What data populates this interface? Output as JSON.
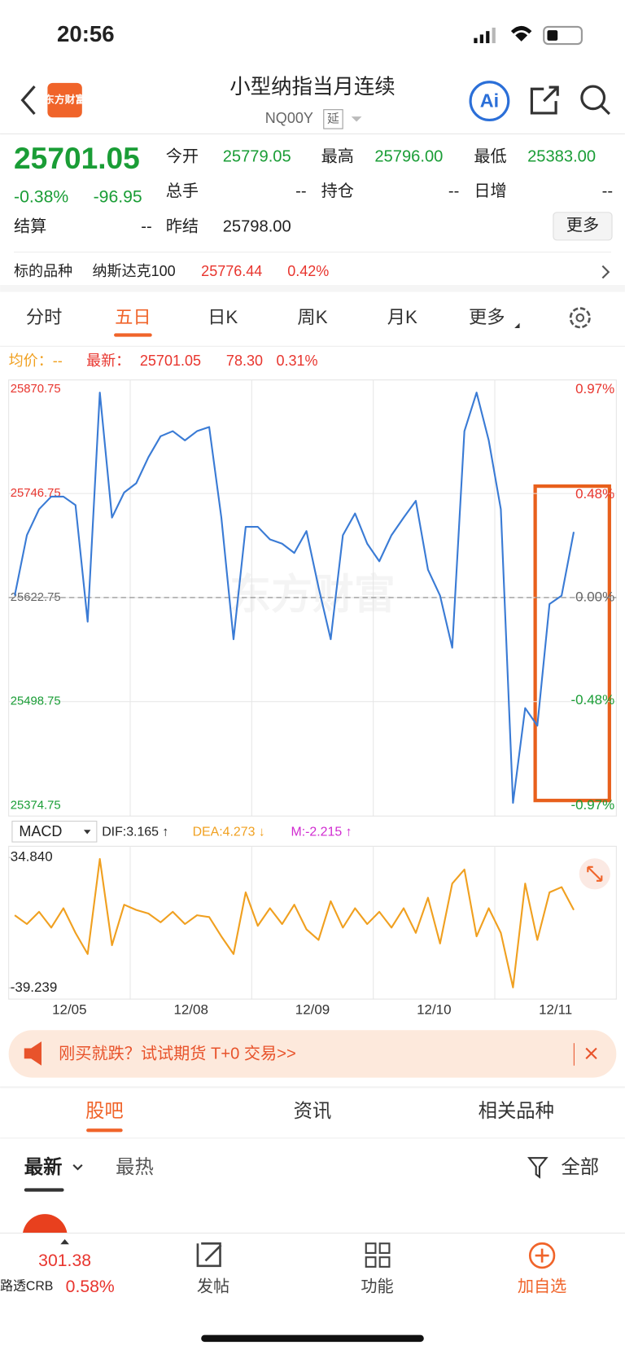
{
  "status_bar": {
    "time": "20:56"
  },
  "header": {
    "logo": "东方财富",
    "title": "小型纳指当月连续",
    "code": "NQ00Y",
    "tag": "延",
    "ai": "Ai"
  },
  "quote": {
    "price": "25701.05",
    "change_pct": "-0.38%",
    "change": "-96.95",
    "fields": [
      {
        "label": "今开",
        "value": "25779.05"
      },
      {
        "label": "最高",
        "value": "25796.00"
      },
      {
        "label": "最低",
        "value": "25383.00"
      },
      {
        "label": "总手",
        "value": "--"
      },
      {
        "label": "持仓",
        "value": "--"
      },
      {
        "label": "日增",
        "value": "--"
      },
      {
        "label": "结算",
        "value": "--"
      },
      {
        "label": "昨结",
        "value": "25798.00"
      }
    ],
    "more": "更多"
  },
  "underlying": {
    "label": "标的品种",
    "name": "纳斯达克100",
    "price": "25776.44",
    "change_pct": "0.42%"
  },
  "tabs": [
    "分时",
    "五日",
    "日K",
    "周K",
    "月K",
    "更多"
  ],
  "chart_info": {
    "avg": "均价：--",
    "latest_label": "最新：",
    "latest": "25701.05",
    "change": "78.30",
    "change_pct": "0.31%"
  },
  "chart_data": [
    {
      "type": "line",
      "categories": [
        "12/05",
        "12/08",
        "12/09",
        "12/10",
        "12/11"
      ],
      "series": [
        {
          "color": "#3a7bd5",
          "values": [
            [
              25625,
              25697,
              25728,
              25743,
              25743,
              25733,
              25594,
              25867,
              25718,
              25748
            ],
            [
              25759,
              25790,
              25815,
              25821,
              25810,
              25821,
              25826,
              25718,
              25573,
              25707
            ],
            [
              25707,
              25692,
              25687,
              25676,
              25702,
              25635,
              25573,
              25697,
              25723,
              25687
            ],
            [
              25666,
              25697,
              25718,
              25738,
              25656,
              25625,
              25563,
              25821,
              25867,
              25810
            ],
            [
              25728,
              25378,
              25491,
              25470,
              25615,
              25625,
              25701
            ]
          ]
        }
      ],
      "ylim": [
        25374.75,
        25870.75
      ],
      "yticks": [
        25870.75,
        25746.75,
        25622.75,
        25498.75,
        25374.75
      ],
      "y2lim": [
        -0.97,
        0.97
      ],
      "y2ticks": [
        {
          "value": 0.97,
          "label": "0.97%"
        },
        {
          "value": 0.48,
          "label": "0.48%"
        },
        {
          "value": 0,
          "label": "0.00%"
        },
        {
          "value": -0.48,
          "label": "-0.48%"
        },
        {
          "value": -0.97,
          "label": "-0.97%"
        }
      ],
      "grid": true,
      "watermark": "东方财富"
    },
    {
      "type": "line",
      "indicator": "MACD",
      "legend": [
        "DIF:3.165 ↑",
        "DEA:4.273 ↓",
        "M:-2.215 ↑"
      ],
      "series": [
        {
          "color": "#f0a020",
          "values": [
            [
              2,
              -3,
              4,
              -5,
              6,
              -8,
              -20,
              34,
              -15,
              8
            ],
            [
              5,
              3,
              -2,
              4,
              -3,
              2,
              1,
              -10,
              -20,
              15
            ],
            [
              -4,
              6,
              -3,
              8,
              -6,
              -12,
              10,
              -5,
              6,
              -3
            ],
            [
              4,
              -5,
              6,
              -8,
              12,
              -14,
              20,
              28,
              -10,
              6
            ],
            [
              -8,
              -39,
              20,
              -12,
              15,
              18,
              5
            ]
          ]
        }
      ],
      "ylim": [
        -39.239,
        34.84
      ],
      "yticks": [
        {
          "value": 34.84,
          "label": "34.840"
        },
        {
          "value": -39.239,
          "label": "-39.239"
        }
      ]
    }
  ],
  "banner": {
    "text": "刚买就跌？试试期货 T+0 交易>>"
  },
  "community_tabs": [
    "股吧",
    "资讯",
    "相关品种"
  ],
  "sort_tabs": [
    "最新",
    "最热"
  ],
  "filter": "全部",
  "bottom_bar": {
    "index_price": "301.38",
    "index_name": "路透CRB",
    "index_change": "0.58%",
    "actions": [
      "发帖",
      "功能",
      "加自选"
    ]
  }
}
